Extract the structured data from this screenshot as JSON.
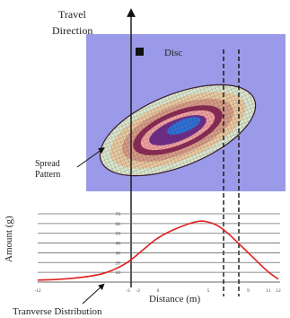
{
  "labels": {
    "travel_line1": "Travel",
    "travel_line2": "Direction",
    "disc": "Disc",
    "spread_line1": "Spread",
    "spread_line2": "Pattern",
    "ylabel": "Amount (g)",
    "xlabel": "Distance (m)",
    "transverse": "Tranverse Distribution"
  },
  "colors": {
    "panel": "#9a9ae8",
    "curve": "#e02020",
    "ring1": "#d8e4cc",
    "ring2": "#e8c8a0",
    "ring3": "#d69a86",
    "ring4": "#8a2a55",
    "ring5": "#f0a0a0",
    "ring6": "#6f2c88",
    "core": "#2f6fd6"
  },
  "chart_data": {
    "type": "line",
    "ylabel": "Amount (g)",
    "xlabel": "Distance (m)",
    "ylim": [
      0,
      70
    ],
    "yticks": [
      "70",
      "60",
      "50",
      "40",
      "30",
      "20",
      "10"
    ],
    "xticks": [
      "-12",
      "-3",
      "-2",
      "0",
      "5",
      "9",
      "11",
      "12"
    ],
    "x": [
      -12,
      -9,
      -6,
      -4.5,
      -3,
      -1.5,
      0,
      2,
      4,
      5,
      6,
      7,
      8,
      9,
      10,
      11,
      12
    ],
    "y": [
      2,
      3,
      7,
      12,
      20,
      33,
      46,
      56,
      63,
      62,
      58,
      50,
      40,
      30,
      20,
      10,
      3
    ]
  }
}
